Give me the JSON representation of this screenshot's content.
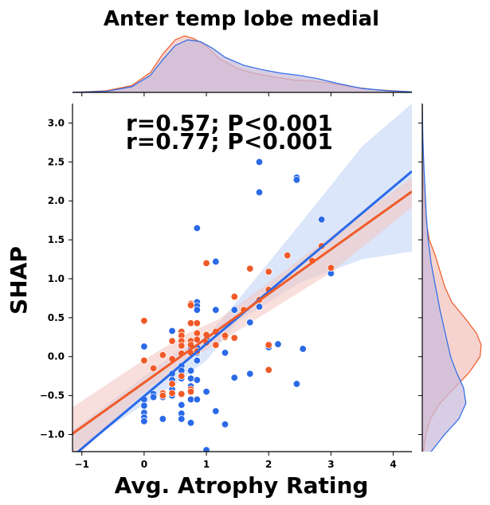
{
  "chart_data": {
    "type": "scatter",
    "title": "Anter temp lobe medial",
    "xlabel": "Avg. Atrophy Rating",
    "ylabel": "SHAP",
    "xlim": [
      -1.15,
      4.3
    ],
    "ylim": [
      -1.22,
      3.25
    ],
    "x_ticks": [
      -1,
      0,
      1,
      2,
      3,
      4
    ],
    "y_ticks": [
      -1.0,
      -0.5,
      0.0,
      0.5,
      1.0,
      1.5,
      2.0,
      2.5,
      3.0
    ],
    "grid": false,
    "annotations": [
      {
        "text": "r=0.57; P<0.001",
        "color": "#2a6ae8"
      },
      {
        "text": "r=0.77; P<0.001",
        "color": "#f05a28"
      }
    ],
    "series": [
      {
        "color": "#2a6ae8",
        "band_color": "#c7d8f7",
        "regression": {
          "x": [
            -1.15,
            4.3
          ],
          "y": [
            -1.28,
            2.38
          ]
        },
        "ci_upper": [
          [
            -1.15,
            -0.95
          ],
          [
            0.5,
            0.05
          ],
          [
            1.0,
            0.25
          ],
          [
            1.5,
            0.72
          ],
          [
            2.5,
            1.7
          ],
          [
            3.5,
            2.7
          ],
          [
            4.3,
            3.25
          ]
        ],
        "ci_lower": [
          [
            -1.15,
            -1.22
          ],
          [
            0.5,
            -0.35
          ],
          [
            1.0,
            -0.05
          ],
          [
            1.5,
            0.45
          ],
          [
            2.5,
            0.95
          ],
          [
            3.5,
            1.25
          ],
          [
            4.3,
            1.35
          ]
        ],
        "x": [
          0.0,
          0.0,
          0.0,
          0.0,
          0.0,
          0.0,
          0.15,
          0.15,
          0.3,
          0.3,
          0.45,
          0.45,
          0.45,
          0.45,
          0.45,
          0.6,
          0.6,
          0.6,
          0.6,
          0.6,
          0.6,
          0.6,
          0.75,
          0.75,
          0.75,
          0.75,
          0.75,
          0.75,
          0.75,
          0.85,
          0.85,
          0.85,
          0.85,
          0.85,
          0.85,
          0.85,
          0.85,
          0.85,
          1.0,
          1.0,
          1.0,
          1.15,
          1.15,
          1.15,
          1.3,
          1.3,
          1.45,
          1.45,
          1.6,
          1.7,
          1.7,
          1.85,
          1.85,
          1.85,
          2.0,
          2.15,
          2.45,
          2.45,
          2.45,
          2.55,
          2.85,
          3.0
        ],
        "y": [
          0.13,
          -0.55,
          -0.63,
          -0.72,
          -0.78,
          -0.83,
          -0.48,
          -0.52,
          -0.52,
          -0.8,
          0.33,
          -0.22,
          -0.3,
          -0.42,
          -0.5,
          0.32,
          -0.12,
          -0.18,
          -0.28,
          -0.62,
          -0.73,
          -0.8,
          0.18,
          0.12,
          -0.18,
          -0.28,
          -0.38,
          -0.55,
          -0.85,
          1.65,
          0.7,
          0.65,
          0.6,
          0.12,
          0.05,
          -0.05,
          -0.3,
          -0.55,
          0.22,
          -0.45,
          -1.2,
          1.22,
          0.6,
          -0.7,
          0.05,
          -0.87,
          0.6,
          -0.27,
          0.6,
          0.44,
          -0.22,
          2.5,
          2.11,
          0.64,
          0.12,
          0.16,
          2.3,
          2.27,
          -0.35,
          0.1,
          1.76,
          1.07
        ]
      },
      {
        "color": "#f05a28",
        "band_color": "#f3c4bd",
        "regression": {
          "x": [
            -1.15,
            4.3
          ],
          "y": [
            -0.99,
            2.12
          ]
        },
        "ci_upper": [
          [
            -1.15,
            -0.65
          ],
          [
            0.0,
            -0.04
          ],
          [
            0.7,
            0.3
          ],
          [
            1.2,
            0.48
          ],
          [
            2.0,
            0.95
          ],
          [
            3.0,
            1.55
          ],
          [
            4.3,
            2.3
          ]
        ],
        "ci_lower": [
          [
            -1.15,
            -1.33
          ],
          [
            0.0,
            -0.46
          ],
          [
            0.7,
            -0.05
          ],
          [
            1.2,
            0.18
          ],
          [
            2.0,
            0.58
          ],
          [
            3.0,
            1.08
          ],
          [
            4.3,
            1.92
          ]
        ],
        "x": [
          0.0,
          0.0,
          0.15,
          0.3,
          0.3,
          0.3,
          0.45,
          0.45,
          0.45,
          0.45,
          0.6,
          0.6,
          0.6,
          0.6,
          0.6,
          0.6,
          0.6,
          0.75,
          0.75,
          0.75,
          0.75,
          0.75,
          0.75,
          0.75,
          0.75,
          0.85,
          0.85,
          0.85,
          0.85,
          1.0,
          1.0,
          1.0,
          1.15,
          1.15,
          1.3,
          1.3,
          1.45,
          1.45,
          1.6,
          1.7,
          1.85,
          2.0,
          2.0,
          2.0,
          2.0,
          2.3,
          2.7,
          2.85,
          3.0
        ],
        "y": [
          0.46,
          -0.05,
          -0.15,
          0.02,
          -0.47,
          -0.5,
          0.2,
          -0.03,
          -0.35,
          -0.47,
          0.32,
          0.27,
          0.2,
          0.14,
          0.04,
          -0.25,
          -0.48,
          0.68,
          0.66,
          0.43,
          0.2,
          0.05,
          -0.42,
          -0.45,
          0.15,
          0.43,
          0.3,
          0.22,
          0.07,
          1.2,
          0.28,
          0.18,
          0.32,
          0.15,
          0.25,
          0.27,
          0.77,
          0.24,
          0.6,
          1.13,
          0.73,
          1.09,
          0.86,
          0.15,
          -0.17,
          1.3,
          1.23,
          1.42,
          1.14
        ]
      }
    ],
    "marginal_x": [
      {
        "color": "#f05a28",
        "fill": "#f3c4bd",
        "x": [
          -1.15,
          -0.6,
          -0.2,
          0.1,
          0.3,
          0.5,
          0.65,
          0.8,
          1.0,
          1.2,
          1.5,
          1.8,
          2.1,
          2.4,
          2.7,
          3.0,
          3.3,
          3.7,
          4.3
        ],
        "density": [
          0.0,
          0.03,
          0.12,
          0.35,
          0.68,
          0.93,
          1.0,
          0.95,
          0.82,
          0.6,
          0.42,
          0.33,
          0.27,
          0.22,
          0.2,
          0.16,
          0.1,
          0.05,
          0.01
        ]
      },
      {
        "color": "#2a6ae8",
        "fill": "#c9bcdc",
        "x": [
          -1.15,
          -0.6,
          -0.2,
          0.1,
          0.3,
          0.5,
          0.7,
          0.9,
          1.1,
          1.3,
          1.6,
          1.9,
          2.2,
          2.5,
          2.8,
          3.1,
          3.5,
          3.9,
          4.3
        ],
        "density": [
          0.0,
          0.02,
          0.1,
          0.3,
          0.58,
          0.83,
          0.93,
          0.9,
          0.78,
          0.62,
          0.48,
          0.4,
          0.34,
          0.3,
          0.24,
          0.16,
          0.07,
          0.03,
          0.01
        ]
      }
    ],
    "marginal_y": [
      {
        "color": "#f05a28",
        "fill": "#f3c4bd",
        "y": [
          -1.22,
          -1.0,
          -0.8,
          -0.6,
          -0.4,
          -0.2,
          0.0,
          0.15,
          0.3,
          0.5,
          0.7,
          0.9,
          1.1,
          1.3,
          1.5,
          1.8,
          2.2,
          2.6,
          3.25
        ],
        "density": [
          0.02,
          0.06,
          0.14,
          0.3,
          0.55,
          0.8,
          0.98,
          1.0,
          0.92,
          0.72,
          0.5,
          0.38,
          0.3,
          0.22,
          0.12,
          0.05,
          0.02,
          0.01,
          0.0
        ]
      },
      {
        "color": "#2a6ae8",
        "fill": "#c9bcdc",
        "y": [
          -1.22,
          -1.0,
          -0.8,
          -0.6,
          -0.4,
          -0.2,
          0.0,
          0.2,
          0.4,
          0.6,
          0.8,
          1.0,
          1.2,
          1.5,
          1.8,
          2.1,
          2.4,
          2.8,
          3.25
        ],
        "density": [
          0.15,
          0.38,
          0.62,
          0.74,
          0.7,
          0.58,
          0.48,
          0.42,
          0.36,
          0.3,
          0.25,
          0.2,
          0.15,
          0.1,
          0.07,
          0.05,
          0.03,
          0.01,
          0.0
        ]
      }
    ]
  }
}
